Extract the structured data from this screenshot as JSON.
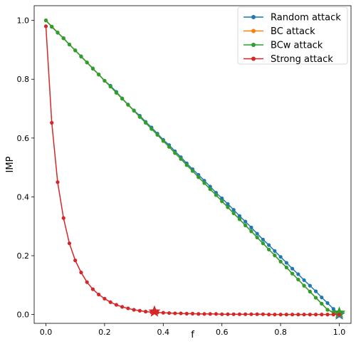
{
  "colors": {
    "random": "#1f77b4",
    "bc": "#ff7f0e",
    "bcw": "#2ca02c",
    "strong": "#d62728"
  },
  "chart_data": {
    "type": "line",
    "title": "",
    "xlabel": "f",
    "ylabel": "IMP",
    "xlim": [
      -0.04,
      1.04
    ],
    "ylim": [
      -0.03,
      1.05
    ],
    "xticks": [
      "0.0",
      "0.2",
      "0.4",
      "0.6",
      "0.8",
      "1.0"
    ],
    "xtick_values": [
      0.0,
      0.2,
      0.4,
      0.6,
      0.8,
      1.0
    ],
    "yticks": [
      "0.0",
      "0.2",
      "0.4",
      "0.6",
      "0.8",
      "1.0"
    ],
    "ytick_values": [
      0.0,
      0.2,
      0.4,
      0.6,
      0.8,
      1.0
    ],
    "grid": false,
    "legend_position": "top-right",
    "series": [
      {
        "name": "Random attack",
        "color_key": "random",
        "x": [
          0.0,
          0.02,
          0.04,
          0.06,
          0.08,
          0.1,
          0.12,
          0.14,
          0.16,
          0.18,
          0.2,
          0.22,
          0.24,
          0.26,
          0.28,
          0.3,
          0.32,
          0.34,
          0.36,
          0.38,
          0.4,
          0.42,
          0.44,
          0.46,
          0.48,
          0.5,
          0.52,
          0.54,
          0.56,
          0.58,
          0.6,
          0.62,
          0.64,
          0.66,
          0.68,
          0.7,
          0.72,
          0.74,
          0.76,
          0.78,
          0.8,
          0.82,
          0.84,
          0.86,
          0.88,
          0.9,
          0.92,
          0.94,
          0.96,
          0.98,
          1.0
        ],
        "y": [
          1.0,
          0.978,
          0.958,
          0.94,
          0.918,
          0.898,
          0.878,
          0.857,
          0.837,
          0.816,
          0.795,
          0.778,
          0.757,
          0.735,
          0.714,
          0.694,
          0.676,
          0.655,
          0.636,
          0.615,
          0.594,
          0.576,
          0.555,
          0.535,
          0.514,
          0.494,
          0.475,
          0.455,
          0.435,
          0.414,
          0.395,
          0.376,
          0.356,
          0.335,
          0.316,
          0.296,
          0.275,
          0.255,
          0.236,
          0.216,
          0.196,
          0.176,
          0.156,
          0.137,
          0.117,
          0.098,
          0.079,
          0.058,
          0.039,
          0.019,
          0.0
        ],
        "marker": {
          "x": 1.0,
          "y": 0.0
        }
      },
      {
        "name": "BC attack",
        "color_key": "bc",
        "x": [
          0.0,
          0.02,
          0.04,
          0.06,
          0.08,
          0.1,
          0.12,
          0.14,
          0.16,
          0.18,
          0.2,
          0.22,
          0.24,
          0.26,
          0.28,
          0.3,
          0.32,
          0.34,
          0.36,
          0.38,
          0.4,
          0.42,
          0.44,
          0.46,
          0.48,
          0.5,
          0.52,
          0.54,
          0.56,
          0.58,
          0.6,
          0.62,
          0.64,
          0.66,
          0.68,
          0.7,
          0.72,
          0.74,
          0.76,
          0.78,
          0.8,
          0.82,
          0.84,
          0.86,
          0.88,
          0.9,
          0.92,
          0.94,
          0.96,
          0.98,
          1.0
        ],
        "y": [
          1.0,
          0.979,
          0.959,
          0.939,
          0.918,
          0.898,
          0.877,
          0.857,
          0.836,
          0.816,
          0.795,
          0.775,
          0.754,
          0.734,
          0.713,
          0.693,
          0.672,
          0.652,
          0.631,
          0.611,
          0.59,
          0.57,
          0.549,
          0.529,
          0.508,
          0.488,
          0.467,
          0.447,
          0.426,
          0.406,
          0.385,
          0.365,
          0.344,
          0.324,
          0.303,
          0.283,
          0.262,
          0.242,
          0.221,
          0.201,
          0.18,
          0.16,
          0.139,
          0.119,
          0.098,
          0.078,
          0.057,
          0.037,
          0.016,
          0.006,
          0.005
        ],
        "marker": {
          "x": 1.0,
          "y": 0.005
        }
      },
      {
        "name": "BCw attack",
        "color_key": "bcw",
        "x": [
          0.0,
          0.02,
          0.04,
          0.06,
          0.08,
          0.1,
          0.12,
          0.14,
          0.16,
          0.18,
          0.2,
          0.22,
          0.24,
          0.26,
          0.28,
          0.3,
          0.32,
          0.34,
          0.36,
          0.38,
          0.4,
          0.42,
          0.44,
          0.46,
          0.48,
          0.5,
          0.52,
          0.54,
          0.56,
          0.58,
          0.6,
          0.62,
          0.64,
          0.66,
          0.68,
          0.7,
          0.72,
          0.74,
          0.76,
          0.78,
          0.8,
          0.82,
          0.84,
          0.86,
          0.88,
          0.9,
          0.92,
          0.94,
          0.96,
          0.98,
          1.0
        ],
        "y": [
          1.0,
          0.979,
          0.959,
          0.939,
          0.918,
          0.898,
          0.877,
          0.857,
          0.836,
          0.816,
          0.795,
          0.775,
          0.754,
          0.734,
          0.713,
          0.693,
          0.672,
          0.652,
          0.631,
          0.611,
          0.59,
          0.57,
          0.549,
          0.529,
          0.508,
          0.488,
          0.467,
          0.447,
          0.426,
          0.406,
          0.385,
          0.365,
          0.344,
          0.324,
          0.303,
          0.283,
          0.262,
          0.242,
          0.221,
          0.201,
          0.18,
          0.16,
          0.139,
          0.119,
          0.098,
          0.078,
          0.057,
          0.037,
          0.016,
          0.008,
          0.006
        ],
        "marker": {
          "x": 1.0,
          "y": 0.006
        }
      },
      {
        "name": "Strong attack",
        "color_key": "strong",
        "x": [
          0.0,
          0.02,
          0.04,
          0.06,
          0.08,
          0.1,
          0.12,
          0.14,
          0.16,
          0.18,
          0.2,
          0.22,
          0.24,
          0.26,
          0.28,
          0.3,
          0.32,
          0.34,
          0.36,
          0.38,
          0.4,
          0.42,
          0.44,
          0.46,
          0.48,
          0.5,
          0.52,
          0.54,
          0.56,
          0.58,
          0.6,
          0.62,
          0.64,
          0.66,
          0.68,
          0.7,
          0.72,
          0.74,
          0.76,
          0.78,
          0.8,
          0.82,
          0.84,
          0.86,
          0.88,
          0.9,
          0.92,
          0.94,
          0.96,
          0.98,
          1.0
        ],
        "y": [
          0.98,
          0.652,
          0.45,
          0.328,
          0.242,
          0.184,
          0.143,
          0.11,
          0.086,
          0.068,
          0.054,
          0.042,
          0.033,
          0.026,
          0.021,
          0.016,
          0.013,
          0.01,
          0.008,
          0.007,
          0.006,
          0.005,
          0.004,
          0.004,
          0.003,
          0.003,
          0.002,
          0.002,
          0.002,
          0.002,
          0.001,
          0.001,
          0.001,
          0.001,
          0.001,
          0.001,
          0.001,
          0.001,
          0.0,
          0.0,
          0.0,
          0.0,
          0.0,
          0.0,
          0.0,
          0.0,
          0.0,
          0.0,
          0.0,
          0.0,
          0.0
        ],
        "marker": {
          "x": 0.37,
          "y": 0.01
        }
      }
    ]
  }
}
